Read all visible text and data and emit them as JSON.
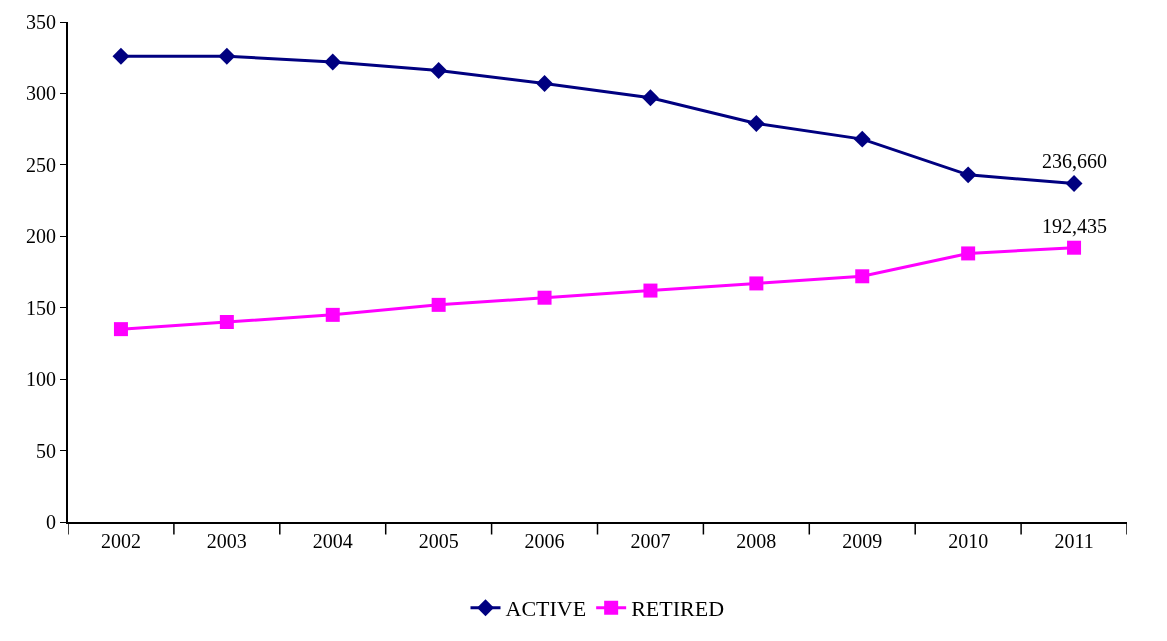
{
  "chart_data": {
    "type": "line",
    "categories": [
      "2002",
      "2003",
      "2004",
      "2005",
      "2006",
      "2007",
      "2008",
      "2009",
      "2010",
      "2011"
    ],
    "series": [
      {
        "name": "ACTIVE",
        "color": "#000080",
        "marker": "diamond",
        "values": [
          326,
          326,
          322,
          316,
          307,
          297,
          279,
          268,
          243,
          237
        ]
      },
      {
        "name": "RETIRED",
        "color": "#ff00ff",
        "marker": "square",
        "values": [
          135,
          140,
          145,
          152,
          157,
          162,
          167,
          172,
          188,
          192
        ]
      }
    ],
    "annotations": [
      "236,660",
      "192,435"
    ],
    "ylim": [
      0,
      350
    ],
    "yticks": [
      0,
      50,
      100,
      150,
      200,
      250,
      300,
      350
    ],
    "grid": false,
    "legend": "bottom",
    "line_style": "solid"
  }
}
